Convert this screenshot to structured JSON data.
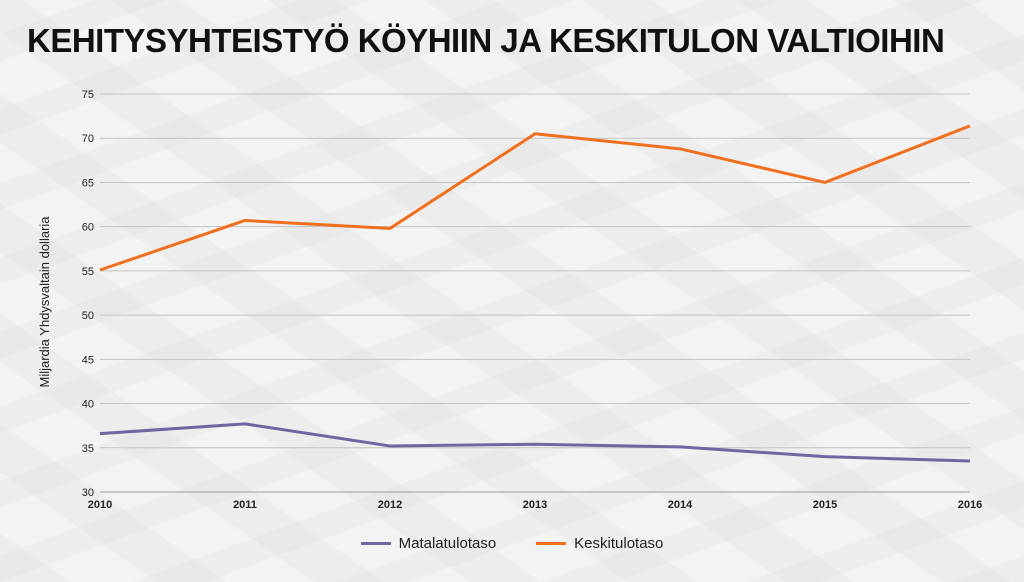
{
  "chart_data": {
    "type": "line",
    "title": "KEHITYSYHTEISTYÖ KÖYHIIN JA KESKITULON VALTIOIHIN",
    "ylabel": "Miljardia Yhdysvaltain dollaria",
    "xlabel": "",
    "x": [
      "2010",
      "2011",
      "2012",
      "2013",
      "2014",
      "2015",
      "2016"
    ],
    "ylim": [
      30,
      75
    ],
    "yticks": [
      30,
      35,
      40,
      45,
      50,
      55,
      60,
      65,
      70,
      75
    ],
    "grid": true,
    "legend_position": "bottom",
    "series": [
      {
        "name": "Matalatulotaso",
        "color": "#6f68a0",
        "values": [
          36.6,
          37.7,
          35.2,
          35.4,
          35.1,
          34.0,
          33.5
        ]
      },
      {
        "name": "Keskitulotaso",
        "color": "#f07020",
        "values": [
          55.1,
          60.7,
          59.8,
          70.5,
          68.8,
          65.0,
          71.4
        ]
      }
    ]
  }
}
